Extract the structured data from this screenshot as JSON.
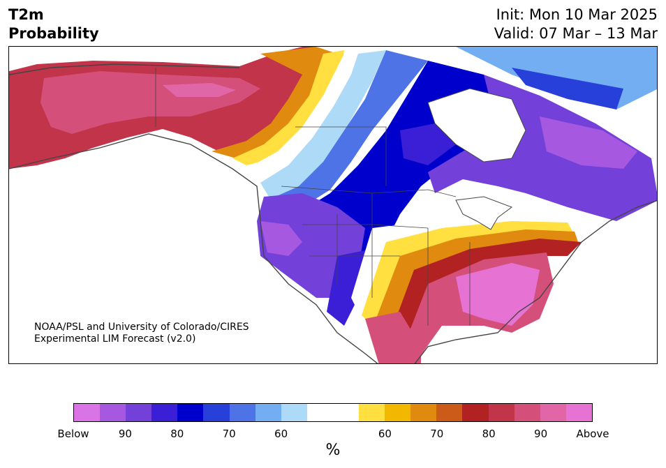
{
  "header": {
    "variable": "T2m",
    "product": "Probability",
    "init": "Init: Mon 10 Mar 2025",
    "valid": "Valid: 07 Mar – 13 Mar"
  },
  "credit": {
    "line1": "NOAA/PSL and University of Colorado/CIRES",
    "line2": "Experimental LIM Forecast (v2.0)"
  },
  "colorbar": {
    "unit": "%",
    "colors": [
      "#d973e6",
      "#a659e0",
      "#7340d9",
      "#3a1fd6",
      "#0000cc",
      "#2740d9",
      "#4d73e6",
      "#73aef2",
      "#addaf7",
      "#ffffff",
      "#ffffff",
      "#ffe040",
      "#f2b800",
      "#e08a10",
      "#cc5a18",
      "#b22222",
      "#c2344a",
      "#d4507a",
      "#e066a8",
      "#e673d4"
    ],
    "tick_labels": [
      "Below",
      "90",
      "80",
      "70",
      "60",
      "60",
      "70",
      "80",
      "90",
      "Above"
    ]
  },
  "legend_colors": {
    "below_cold": "#0000cc",
    "above_warm": "#b22222"
  }
}
